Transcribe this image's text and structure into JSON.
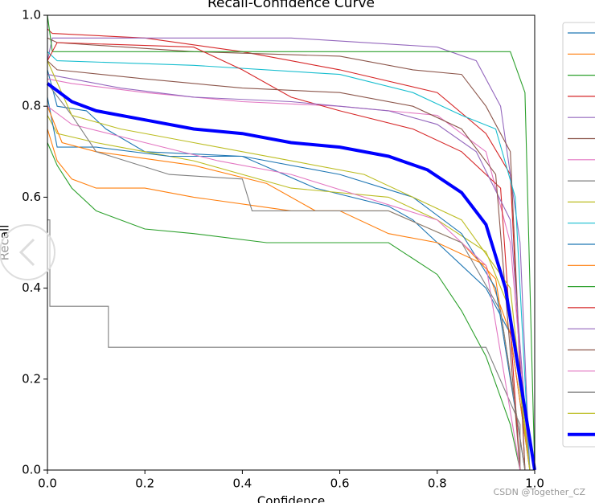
{
  "chart_data": {
    "type": "line",
    "title": "Recall-Confidence Curve",
    "xlabel": "Confidence",
    "ylabel": "Recall",
    "xlim": [
      0,
      1
    ],
    "ylim": [
      0,
      1
    ],
    "xticks": [
      {
        "value": 0,
        "label": "0.0"
      },
      0.2,
      0.4,
      0.6,
      0.8,
      {
        "value": 1,
        "label": "1.0"
      }
    ],
    "yticks": [
      {
        "value": 0,
        "label": "0.0"
      },
      0.2,
      0.4,
      0.6,
      0.8,
      {
        "value": 1,
        "label": "1.0"
      }
    ],
    "watermark": "CSDN @Together_CZ",
    "series": [
      {
        "color": "#1f77b4",
        "x": [
          0,
          0.02,
          0.08,
          0.12,
          0.2,
          0.4,
          0.55,
          0.7,
          0.75,
          0.8,
          0.85,
          0.9,
          0.95,
          0.99
        ],
        "values": [
          0.88,
          0.8,
          0.79,
          0.75,
          0.7,
          0.69,
          0.62,
          0.58,
          0.55,
          0.5,
          0.45,
          0.4,
          0.3,
          0
        ]
      },
      {
        "color": "#ff7f0e",
        "x": [
          0,
          0.02,
          0.05,
          0.1,
          0.2,
          0.3,
          0.5,
          0.6,
          0.7,
          0.8,
          0.9,
          0.95,
          0.99
        ],
        "values": [
          0.75,
          0.68,
          0.64,
          0.62,
          0.62,
          0.6,
          0.57,
          0.57,
          0.52,
          0.5,
          0.45,
          0.3,
          0
        ]
      },
      {
        "color": "#2ca02c",
        "x": [
          0,
          0.02,
          0.05,
          0.1,
          0.2,
          0.3,
          0.45,
          0.7,
          0.8,
          0.85,
          0.9,
          0.95,
          0.97
        ],
        "values": [
          0.72,
          0.67,
          0.62,
          0.57,
          0.53,
          0.52,
          0.5,
          0.5,
          0.43,
          0.35,
          0.25,
          0.1,
          0
        ]
      },
      {
        "color": "#d62728",
        "x": [
          0,
          0.01,
          0.2,
          0.4,
          0.5,
          0.6,
          0.8,
          0.9,
          0.95,
          0.98
        ],
        "values": [
          0.97,
          0.96,
          0.95,
          0.92,
          0.9,
          0.88,
          0.83,
          0.74,
          0.65,
          0
        ]
      },
      {
        "color": "#9467bd",
        "x": [
          0,
          0.01,
          0.5,
          0.8,
          0.88,
          0.93,
          0.97,
          0.99
        ],
        "values": [
          0.9,
          0.95,
          0.95,
          0.93,
          0.9,
          0.8,
          0.5,
          0
        ]
      },
      {
        "color": "#8c564b",
        "x": [
          0,
          0.02,
          0.3,
          0.6,
          0.75,
          0.85,
          0.9,
          0.95,
          0.98
        ],
        "values": [
          0.95,
          0.94,
          0.92,
          0.91,
          0.88,
          0.87,
          0.8,
          0.7,
          0
        ]
      },
      {
        "color": "#e377c2",
        "x": [
          0,
          0.05,
          0.2,
          0.4,
          0.6,
          0.8,
          0.9,
          0.95,
          0.99
        ],
        "values": [
          0.86,
          0.85,
          0.83,
          0.81,
          0.8,
          0.78,
          0.7,
          0.5,
          0
        ]
      },
      {
        "color": "#7f7f7f",
        "x": [
          0,
          0.005,
          0.005,
          0.125,
          0.125,
          0.9,
          0.97,
          0.97
        ],
        "values": [
          0.55,
          0.55,
          0.36,
          0.36,
          0.27,
          0.27,
          0.1,
          0
        ]
      },
      {
        "color": "#bcbd22",
        "x": [
          0,
          0.02,
          0.1,
          0.2,
          0.3,
          0.5,
          0.7,
          0.8,
          0.9,
          0.95,
          0.99
        ],
        "values": [
          0.78,
          0.74,
          0.72,
          0.7,
          0.68,
          0.62,
          0.6,
          0.55,
          0.48,
          0.35,
          0
        ]
      },
      {
        "color": "#17becf",
        "x": [
          0,
          0.02,
          0.3,
          0.6,
          0.75,
          0.85,
          0.92,
          0.96,
          0.99
        ],
        "values": [
          0.92,
          0.9,
          0.89,
          0.87,
          0.83,
          0.78,
          0.75,
          0.6,
          0
        ]
      },
      {
        "color": "#1f77b4",
        "x": [
          0,
          0.02,
          0.1,
          0.25,
          0.4,
          0.6,
          0.75,
          0.85,
          0.92,
          0.98
        ],
        "values": [
          0.82,
          0.71,
          0.71,
          0.69,
          0.69,
          0.65,
          0.6,
          0.52,
          0.4,
          0
        ]
      },
      {
        "color": "#ff7f0e",
        "x": [
          0,
          0.03,
          0.1,
          0.3,
          0.45,
          0.55,
          0.7,
          0.85,
          0.92,
          0.98
        ],
        "values": [
          0.8,
          0.72,
          0.7,
          0.67,
          0.63,
          0.57,
          0.57,
          0.5,
          0.42,
          0
        ]
      },
      {
        "color": "#2ca02c",
        "x": [
          0,
          0.01,
          0.95,
          0.98,
          1.0
        ],
        "values": [
          1.0,
          0.92,
          0.92,
          0.83,
          0
        ]
      },
      {
        "color": "#d62728",
        "x": [
          0,
          0.02,
          0.3,
          0.4,
          0.5,
          0.6,
          0.75,
          0.85,
          0.93,
          0.97
        ],
        "values": [
          0.9,
          0.94,
          0.93,
          0.88,
          0.82,
          0.79,
          0.75,
          0.7,
          0.62,
          0
        ]
      },
      {
        "color": "#9467bd",
        "x": [
          0,
          0.05,
          0.15,
          0.3,
          0.5,
          0.7,
          0.8,
          0.88,
          0.95,
          0.99
        ],
        "values": [
          0.87,
          0.86,
          0.84,
          0.82,
          0.81,
          0.79,
          0.76,
          0.7,
          0.55,
          0
        ]
      },
      {
        "color": "#8c564b",
        "x": [
          0,
          0.02,
          0.2,
          0.4,
          0.6,
          0.75,
          0.85,
          0.92,
          0.97
        ],
        "values": [
          0.9,
          0.88,
          0.86,
          0.84,
          0.83,
          0.8,
          0.75,
          0.65,
          0
        ]
      },
      {
        "color": "#e377c2",
        "x": [
          0,
          0.05,
          0.2,
          0.35,
          0.5,
          0.65,
          0.8,
          0.9,
          0.97
        ],
        "values": [
          0.8,
          0.76,
          0.72,
          0.68,
          0.65,
          0.6,
          0.55,
          0.45,
          0
        ]
      },
      {
        "color": "#7f7f7f",
        "x": [
          0,
          0.05,
          0.1,
          0.25,
          0.4,
          0.42,
          0.7,
          0.85,
          0.93,
          0.98
        ],
        "values": [
          0.85,
          0.78,
          0.7,
          0.65,
          0.64,
          0.57,
          0.57,
          0.5,
          0.35,
          0
        ]
      },
      {
        "color": "#bcbd22",
        "x": [
          0,
          0.05,
          0.15,
          0.3,
          0.5,
          0.65,
          0.75,
          0.85,
          0.95,
          0.99
        ],
        "values": [
          0.9,
          0.78,
          0.75,
          0.72,
          0.68,
          0.65,
          0.6,
          0.55,
          0.4,
          0
        ]
      },
      {
        "color": "#0000ff",
        "x": [
          0,
          0.05,
          0.1,
          0.2,
          0.3,
          0.4,
          0.5,
          0.6,
          0.7,
          0.78,
          0.85,
          0.9,
          0.94,
          0.97,
          1.0
        ],
        "values": [
          0.85,
          0.81,
          0.79,
          0.77,
          0.75,
          0.74,
          0.72,
          0.71,
          0.69,
          0.66,
          0.61,
          0.54,
          0.4,
          0.2,
          0
        ]
      }
    ]
  }
}
